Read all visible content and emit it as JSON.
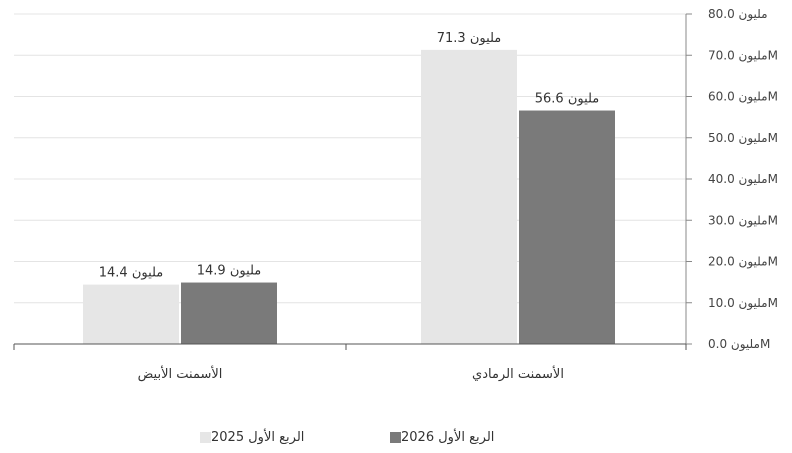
{
  "chart_data": {
    "type": "bar",
    "categories": [
      "الأسمنت الأبيض",
      "الأسمنت الرمادي"
    ],
    "series": [
      {
        "name": "الربع الأول 2025",
        "color": "#e6e6e6",
        "values": [
          14.4,
          71.3
        ],
        "labels": [
          "14.4 مليون",
          "71.3 مليون"
        ]
      },
      {
        "name": "الربع الأول 2026",
        "color": "#7a7a7a",
        "values": [
          14.9,
          56.6
        ],
        "labels": [
          "14.9 مليون",
          "56.6 مليون"
        ]
      }
    ],
    "y_axis": {
      "side": "right",
      "min": 0,
      "max": 80,
      "ticks": [
        0,
        10,
        20,
        30,
        40,
        50,
        60,
        70,
        80
      ],
      "tick_labels": [
        "مليون 0.0M",
        "مليون 10.0M",
        "مليون 20.0M",
        "مليون 30.0M",
        "مليون 40.0M",
        "مليون 50.0M",
        "مليون 60.0M",
        "مليون 70.0M",
        "مليون 80.0"
      ]
    },
    "legend_position": "bottom",
    "grid": true
  }
}
